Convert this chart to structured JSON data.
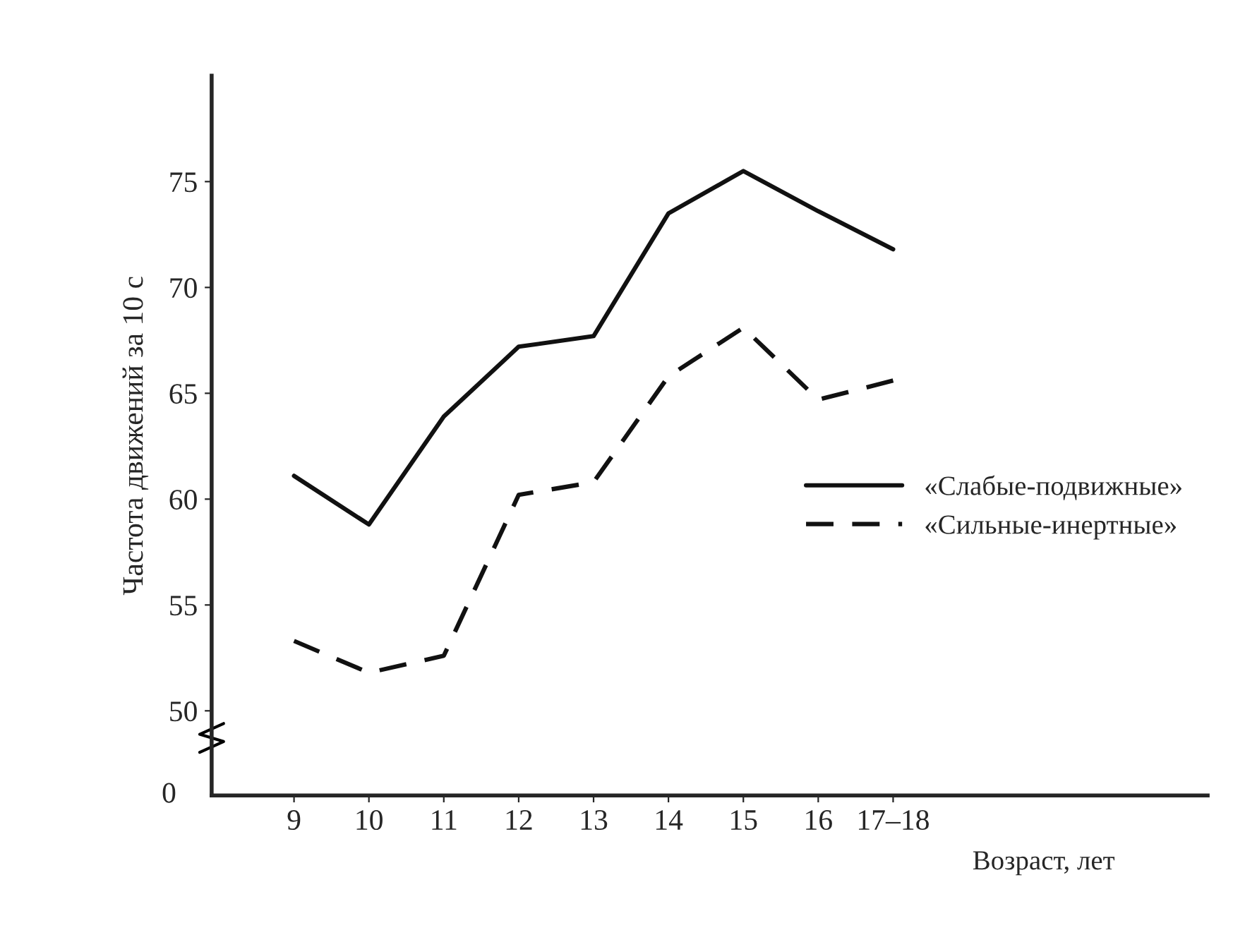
{
  "chart_data": {
    "type": "line",
    "xlabel": "Возраст, лет",
    "ylabel": "Частота движений за 10 с",
    "categories": [
      "9",
      "10",
      "11",
      "12",
      "13",
      "14",
      "15",
      "16",
      "17–18"
    ],
    "series": [
      {
        "name": "«Слабые-подвижные»",
        "color": "#111111",
        "line_style": "solid",
        "values": [
          61.1,
          58.8,
          63.9,
          67.2,
          67.7,
          73.5,
          75.5,
          73.6,
          71.8
        ]
      },
      {
        "name": "«Сильные-инертные»",
        "color": "#111111",
        "line_style": "dashed",
        "values": [
          53.3,
          51.8,
          52.6,
          60.2,
          60.8,
          65.8,
          68.1,
          64.7,
          65.6
        ]
      }
    ],
    "ylim": [
      46,
      80
    ],
    "yticks": [
      50,
      55,
      60,
      65,
      70,
      75
    ],
    "annotations": [
      "0"
    ],
    "legend": "right",
    "grid": false,
    "marker": "none"
  }
}
